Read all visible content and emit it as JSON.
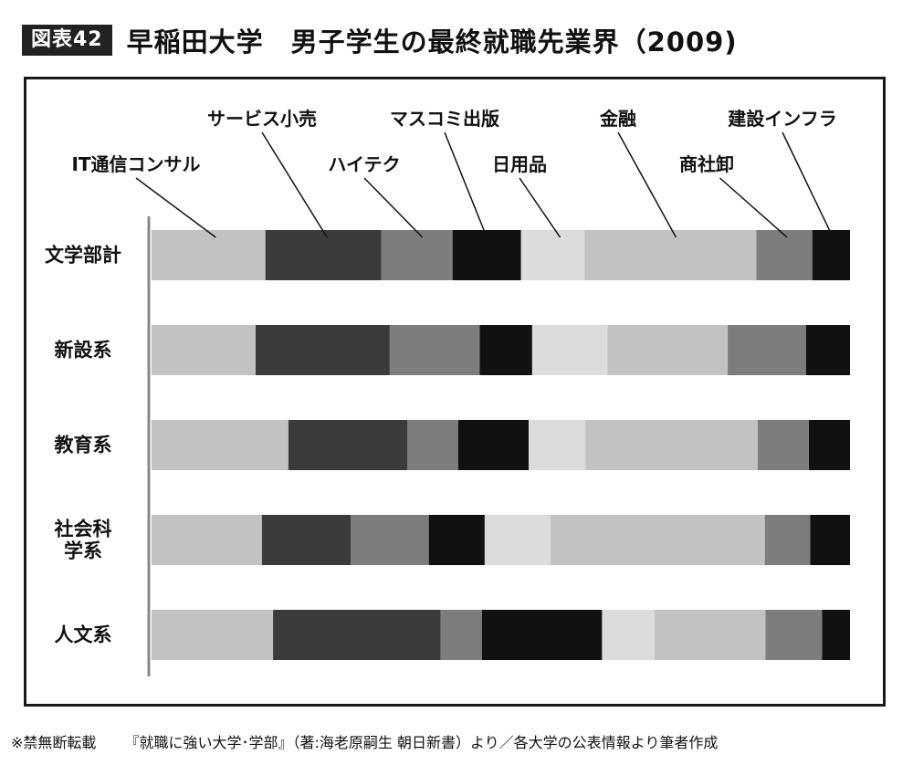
{
  "figure_tag": "図表42",
  "title": "早稲田大学　男子学生の最終就職先業界（2009)",
  "footer": {
    "note": "※禁無断転載",
    "source": "『就職に強い大学･学部』（著:海老原嗣生 朝日新書）より／各大学の公表情報より筆者作成"
  },
  "chart_data": {
    "type": "bar",
    "stacked": true,
    "orientation": "horizontal",
    "normalized": true,
    "xlim": [
      0,
      100
    ],
    "categories": [
      [
        "文学部計"
      ],
      [
        "新設系"
      ],
      [
        "教育系"
      ],
      [
        "社会科",
        "学系"
      ],
      [
        "人文系"
      ]
    ],
    "series": [
      {
        "name": "IT通信コンサル",
        "color": "#c2c2c2",
        "values": [
          16.3,
          14.9,
          19.6,
          15.8,
          17.4
        ]
      },
      {
        "name": "サービス小売",
        "color": "#3b3b3b",
        "values": [
          16.6,
          19.2,
          17.0,
          12.7,
          24.0
        ]
      },
      {
        "name": "ハイテク",
        "color": "#7d7d7d",
        "values": [
          10.2,
          12.9,
          7.3,
          11.2,
          5.9
        ]
      },
      {
        "name": "マスコミ出版",
        "color": "#111111",
        "values": [
          9.8,
          7.5,
          10.1,
          8.0,
          17.2
        ]
      },
      {
        "name": "日用品",
        "color": "#dcdcdc",
        "values": [
          9.1,
          10.8,
          8.1,
          9.4,
          7.5
        ]
      },
      {
        "name": "金融",
        "color": "#c2c2c2",
        "values": [
          24.6,
          17.2,
          24.7,
          30.7,
          15.9
        ]
      },
      {
        "name": "商社卸",
        "color": "#7d7d7d",
        "values": [
          8.0,
          11.2,
          7.3,
          6.5,
          8.1
        ]
      },
      {
        "name": "建設インフラ",
        "color": "#111111",
        "values": [
          5.4,
          6.3,
          5.9,
          5.7,
          4.0
        ]
      }
    ]
  }
}
